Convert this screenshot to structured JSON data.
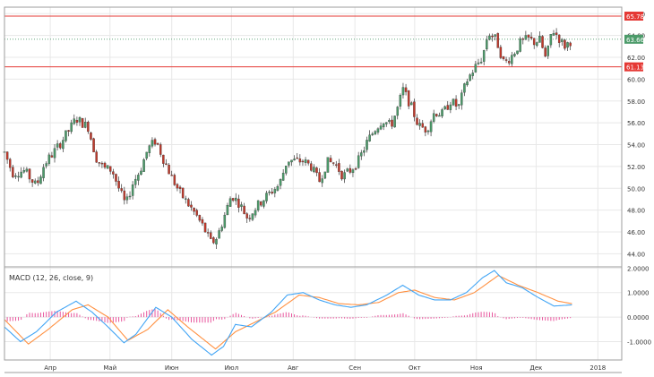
{
  "colors": {
    "up": "#4c9b6a",
    "down": "#c0392b",
    "grid": "#e8e8e8",
    "level_line": "#e53935",
    "current_line": "#4c9b6a",
    "macd_line": "#42a5f5",
    "signal_line": "#ff9142",
    "histogram": "#e8559d",
    "axis_text": "#333333",
    "border": "#9e9e9e"
  },
  "price_axis": {
    "ylim": [
      42.8,
      66.6
    ],
    "ticks": [
      "66.00",
      "64.00",
      "62.00",
      "60.00",
      "58.00",
      "56.00",
      "54.00",
      "52.00",
      "50.00",
      "48.00",
      "46.00",
      "44.00"
    ]
  },
  "macd_axis": {
    "ylim": [
      -1.75,
      2.05
    ],
    "ticks": [
      "2.0000",
      "1.0000",
      "0.0000",
      "-1.0000"
    ]
  },
  "time_axis": {
    "months": [
      {
        "label": "Апр",
        "day": 23
      },
      {
        "label": "Май",
        "day": 53
      },
      {
        "label": "Июн",
        "day": 84
      },
      {
        "label": "Июл",
        "day": 114
      },
      {
        "label": "Авг",
        "day": 145
      },
      {
        "label": "Сен",
        "day": 176
      },
      {
        "label": "Окт",
        "day": 206
      },
      {
        "label": "Ноя",
        "day": 237
      },
      {
        "label": "Дек",
        "day": 267
      },
      {
        "label": "2018",
        "day": 298
      }
    ],
    "day_range": [
      0,
      310
    ]
  },
  "indicator_label": "MACD (12, 26, close, 9)",
  "level_labels": {
    "resistance": "65.78",
    "current": "63.66",
    "support": "61.13"
  },
  "chart_data": {
    "type": "candlestick",
    "price_levels": {
      "resistance": 65.78,
      "current": 63.66,
      "support": 61.13
    },
    "price_path": [
      {
        "day": 0,
        "price": 53.3
      },
      {
        "day": 4,
        "price": 51.4
      },
      {
        "day": 10,
        "price": 51.6
      },
      {
        "day": 16,
        "price": 50.2
      },
      {
        "day": 20,
        "price": 52.2
      },
      {
        "day": 26,
        "price": 53.6
      },
      {
        "day": 32,
        "price": 55.2
      },
      {
        "day": 36,
        "price": 56.4
      },
      {
        "day": 42,
        "price": 55.6
      },
      {
        "day": 46,
        "price": 52.8
      },
      {
        "day": 50,
        "price": 51.8
      },
      {
        "day": 54,
        "price": 51.7
      },
      {
        "day": 58,
        "price": 49.7
      },
      {
        "day": 61,
        "price": 48.4
      },
      {
        "day": 64,
        "price": 50.3
      },
      {
        "day": 68,
        "price": 51.6
      },
      {
        "day": 72,
        "price": 53.6
      },
      {
        "day": 76,
        "price": 54.4
      },
      {
        "day": 80,
        "price": 52.6
      },
      {
        "day": 84,
        "price": 51.0
      },
      {
        "day": 88,
        "price": 49.6
      },
      {
        "day": 92,
        "price": 48.6
      },
      {
        "day": 96,
        "price": 47.6
      },
      {
        "day": 100,
        "price": 46.4
      },
      {
        "day": 104,
        "price": 44.9
      },
      {
        "day": 107,
        "price": 45.6
      },
      {
        "day": 110,
        "price": 47.2
      },
      {
        "day": 114,
        "price": 49.4
      },
      {
        "day": 118,
        "price": 48.6
      },
      {
        "day": 122,
        "price": 47.3
      },
      {
        "day": 126,
        "price": 48.2
      },
      {
        "day": 130,
        "price": 49.0
      },
      {
        "day": 134,
        "price": 49.7
      },
      {
        "day": 138,
        "price": 50.3
      },
      {
        "day": 142,
        "price": 52.6
      },
      {
        "day": 146,
        "price": 52.5
      },
      {
        "day": 150,
        "price": 52.5
      },
      {
        "day": 154,
        "price": 52.0
      },
      {
        "day": 158,
        "price": 50.6
      },
      {
        "day": 162,
        "price": 52.4
      },
      {
        "day": 166,
        "price": 52.3
      },
      {
        "day": 170,
        "price": 51.1
      },
      {
        "day": 174,
        "price": 51.7
      },
      {
        "day": 178,
        "price": 52.6
      },
      {
        "day": 182,
        "price": 54.2
      },
      {
        "day": 186,
        "price": 55.4
      },
      {
        "day": 190,
        "price": 56.3
      },
      {
        "day": 194,
        "price": 55.7
      },
      {
        "day": 198,
        "price": 57.6
      },
      {
        "day": 200,
        "price": 59.1
      },
      {
        "day": 204,
        "price": 57.6
      },
      {
        "day": 208,
        "price": 55.7
      },
      {
        "day": 212,
        "price": 55.4
      },
      {
        "day": 216,
        "price": 57.0
      },
      {
        "day": 220,
        "price": 56.8
      },
      {
        "day": 224,
        "price": 58.0
      },
      {
        "day": 228,
        "price": 57.4
      },
      {
        "day": 232,
        "price": 59.8
      },
      {
        "day": 236,
        "price": 61.0
      },
      {
        "day": 240,
        "price": 62.0
      },
      {
        "day": 243,
        "price": 64.3
      },
      {
        "day": 247,
        "price": 63.6
      },
      {
        "day": 251,
        "price": 61.4
      },
      {
        "day": 255,
        "price": 62.2
      },
      {
        "day": 259,
        "price": 63.3
      },
      {
        "day": 263,
        "price": 63.7
      },
      {
        "day": 266,
        "price": 63.4
      },
      {
        "day": 269,
        "price": 63.6
      },
      {
        "day": 272,
        "price": 61.7
      },
      {
        "day": 275,
        "price": 64.6
      },
      {
        "day": 278,
        "price": 63.9
      },
      {
        "day": 281,
        "price": 63.0
      },
      {
        "day": 285,
        "price": 63.6
      }
    ],
    "macd_path": [
      {
        "day": 0,
        "value": -0.4
      },
      {
        "day": 8,
        "value": -1.0
      },
      {
        "day": 16,
        "value": -0.6
      },
      {
        "day": 26,
        "value": 0.2
      },
      {
        "day": 36,
        "value": 0.65
      },
      {
        "day": 44,
        "value": 0.2
      },
      {
        "day": 52,
        "value": -0.4
      },
      {
        "day": 60,
        "value": -1.05
      },
      {
        "day": 66,
        "value": -0.7
      },
      {
        "day": 76,
        "value": 0.4
      },
      {
        "day": 84,
        "value": 0.0
      },
      {
        "day": 94,
        "value": -0.9
      },
      {
        "day": 104,
        "value": -1.55
      },
      {
        "day": 110,
        "value": -1.2
      },
      {
        "day": 116,
        "value": -0.3
      },
      {
        "day": 124,
        "value": -0.4
      },
      {
        "day": 134,
        "value": 0.2
      },
      {
        "day": 142,
        "value": 0.9
      },
      {
        "day": 150,
        "value": 1.0
      },
      {
        "day": 158,
        "value": 0.7
      },
      {
        "day": 166,
        "value": 0.5
      },
      {
        "day": 174,
        "value": 0.4
      },
      {
        "day": 182,
        "value": 0.5
      },
      {
        "day": 192,
        "value": 0.9
      },
      {
        "day": 200,
        "value": 1.3
      },
      {
        "day": 208,
        "value": 0.9
      },
      {
        "day": 216,
        "value": 0.7
      },
      {
        "day": 224,
        "value": 0.7
      },
      {
        "day": 232,
        "value": 1.0
      },
      {
        "day": 240,
        "value": 1.6
      },
      {
        "day": 246,
        "value": 1.9
      },
      {
        "day": 252,
        "value": 1.4
      },
      {
        "day": 260,
        "value": 1.2
      },
      {
        "day": 268,
        "value": 0.8
      },
      {
        "day": 276,
        "value": 0.45
      },
      {
        "day": 285,
        "value": 0.5
      }
    ],
    "signal_path": [
      {
        "day": 0,
        "value": -0.1
      },
      {
        "day": 12,
        "value": -1.1
      },
      {
        "day": 22,
        "value": -0.5
      },
      {
        "day": 34,
        "value": 0.3
      },
      {
        "day": 42,
        "value": 0.5
      },
      {
        "day": 52,
        "value": 0.0
      },
      {
        "day": 62,
        "value": -0.95
      },
      {
        "day": 72,
        "value": -0.5
      },
      {
        "day": 82,
        "value": 0.3
      },
      {
        "day": 92,
        "value": -0.4
      },
      {
        "day": 106,
        "value": -1.3
      },
      {
        "day": 116,
        "value": -0.6
      },
      {
        "day": 126,
        "value": -0.2
      },
      {
        "day": 136,
        "value": 0.2
      },
      {
        "day": 148,
        "value": 0.9
      },
      {
        "day": 158,
        "value": 0.8
      },
      {
        "day": 168,
        "value": 0.55
      },
      {
        "day": 178,
        "value": 0.5
      },
      {
        "day": 188,
        "value": 0.6
      },
      {
        "day": 198,
        "value": 1.0
      },
      {
        "day": 206,
        "value": 1.1
      },
      {
        "day": 216,
        "value": 0.8
      },
      {
        "day": 226,
        "value": 0.7
      },
      {
        "day": 236,
        "value": 1.0
      },
      {
        "day": 248,
        "value": 1.7
      },
      {
        "day": 258,
        "value": 1.3
      },
      {
        "day": 268,
        "value": 1.0
      },
      {
        "day": 278,
        "value": 0.65
      },
      {
        "day": 285,
        "value": 0.55
      }
    ]
  }
}
